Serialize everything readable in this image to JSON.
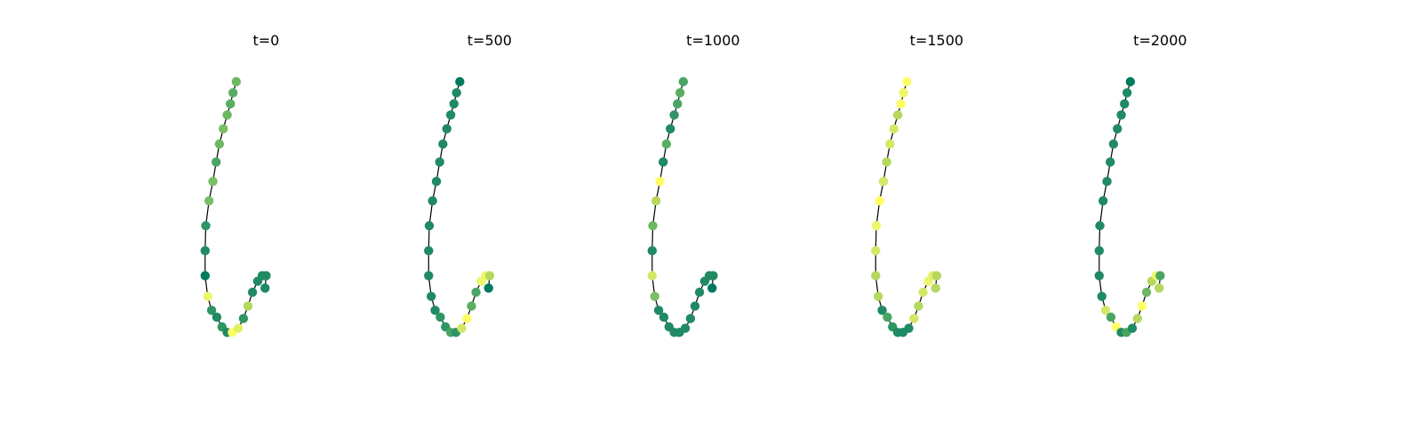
{
  "chart_data": {
    "type": "scatter",
    "description_of_marks": "graph drawing: 26 nodes connected in a chain, node color encodes a value on a green-to-yellow colormap",
    "colormap": [
      "#007a5e",
      "#1f8a63",
      "#4aa564",
      "#7bbe63",
      "#b5d85f",
      "#ffff66"
    ],
    "node_positions": [
      [
        5.4,
        10.0
      ],
      [
        5.15,
        9.6
      ],
      [
        4.95,
        9.2
      ],
      [
        4.7,
        8.8
      ],
      [
        4.4,
        8.3
      ],
      [
        4.1,
        7.75
      ],
      [
        3.85,
        7.1
      ],
      [
        3.6,
        6.4
      ],
      [
        3.3,
        5.7
      ],
      [
        3.05,
        4.8
      ],
      [
        3.0,
        3.9
      ],
      [
        3.0,
        3.0
      ],
      [
        3.2,
        2.25
      ],
      [
        3.5,
        1.75
      ],
      [
        3.9,
        1.5
      ],
      [
        4.3,
        1.15
      ],
      [
        4.7,
        0.95
      ],
      [
        5.1,
        0.95
      ],
      [
        5.55,
        1.1
      ],
      [
        5.95,
        1.45
      ],
      [
        6.3,
        1.9
      ],
      [
        6.65,
        2.4
      ],
      [
        7.05,
        2.8
      ],
      [
        7.4,
        3.0
      ],
      [
        7.7,
        3.0
      ],
      [
        7.62,
        2.55
      ]
    ],
    "edges": [
      [
        0,
        1
      ],
      [
        1,
        2
      ],
      [
        2,
        3
      ],
      [
        3,
        4
      ],
      [
        4,
        5
      ],
      [
        5,
        6
      ],
      [
        6,
        7
      ],
      [
        7,
        8
      ],
      [
        8,
        9
      ],
      [
        9,
        10
      ],
      [
        10,
        11
      ],
      [
        11,
        12
      ],
      [
        12,
        13
      ],
      [
        13,
        14
      ],
      [
        14,
        15
      ],
      [
        15,
        16
      ],
      [
        16,
        17
      ],
      [
        17,
        18
      ],
      [
        18,
        19
      ],
      [
        19,
        20
      ],
      [
        20,
        21
      ],
      [
        21,
        22
      ],
      [
        22,
        23
      ],
      [
        23,
        24
      ],
      [
        24,
        25
      ]
    ],
    "panels": [
      {
        "title": "t=0",
        "node_colors": [
          "#6db763",
          "#5aae63",
          "#5aae63",
          "#6db763",
          "#7bbe63",
          "#6db763",
          "#4aa564",
          "#7bbe63",
          "#7bbe63",
          "#2f9563",
          "#1f8a63",
          "#007a5e",
          "#eef66a",
          "#2f9563",
          "#1f8a63",
          "#2f9563",
          "#1f8a63",
          "#ffff66",
          "#e2f067",
          "#2f9563",
          "#b5d85f",
          "#1f8a63",
          "#1f8a63",
          "#1f8a63",
          "#1f8a63",
          "#1f8a63"
        ]
      },
      {
        "title": "t=500",
        "node_colors": [
          "#007a5e",
          "#1f8a63",
          "#1f8a63",
          "#1f8a63",
          "#1f8a63",
          "#1f8a63",
          "#1f8a63",
          "#1f8a63",
          "#1f8a63",
          "#1f8a63",
          "#1f8a63",
          "#1f8a63",
          "#1f8a63",
          "#1f8a63",
          "#2f9563",
          "#2f9563",
          "#4aa564",
          "#2f9563",
          "#d4e766",
          "#ffff66",
          "#5aae63",
          "#4aa564",
          "#eef66a",
          "#eef66a",
          "#b5d85f",
          "#007a5e"
        ]
      },
      {
        "title": "t=1000",
        "node_colors": [
          "#4aa564",
          "#5aae63",
          "#4aa564",
          "#2f9563",
          "#1f8a63",
          "#5aae63",
          "#1f8a63",
          "#ffff66",
          "#b5d85f",
          "#6db763",
          "#1f8a63",
          "#d4e766",
          "#7bbe63",
          "#1f8a63",
          "#1f8a63",
          "#1f8a63",
          "#1f8a63",
          "#1f8a63",
          "#1f8a63",
          "#1f8a63",
          "#1f8a63",
          "#1f8a63",
          "#1f8a63",
          "#1f8a63",
          "#1f8a63",
          "#007a5e"
        ]
      },
      {
        "title": "t=1500",
        "node_colors": [
          "#ffff66",
          "#eef66a",
          "#ffff66",
          "#b5d85f",
          "#d4e766",
          "#d4e766",
          "#b5d85f",
          "#d4e766",
          "#ffff66",
          "#eef66a",
          "#d4e766",
          "#b5d85f",
          "#b5d85f",
          "#1f8a63",
          "#4aa564",
          "#2f9563",
          "#1f8a63",
          "#1f8a63",
          "#1f8a63",
          "#d4e766",
          "#b5d85f",
          "#d4e766",
          "#eef66a",
          "#e2f067",
          "#b5d85f",
          "#b5d85f"
        ]
      },
      {
        "title": "t=2000",
        "node_colors": [
          "#007a5e",
          "#1f8a63",
          "#1f8a63",
          "#1f8a63",
          "#1f8a63",
          "#1f8a63",
          "#1f8a63",
          "#1f8a63",
          "#1f8a63",
          "#1f8a63",
          "#1f8a63",
          "#1f8a63",
          "#1f8a63",
          "#d4e766",
          "#4aa564",
          "#ffff66",
          "#1f8a63",
          "#4aa564",
          "#1f8a63",
          "#b5d85f",
          "#ffff66",
          "#6db763",
          "#b5d85f",
          "#eef66a",
          "#4aa564",
          "#b5d85f"
        ]
      }
    ],
    "axes_visible": false,
    "grid": false,
    "legend": false
  }
}
